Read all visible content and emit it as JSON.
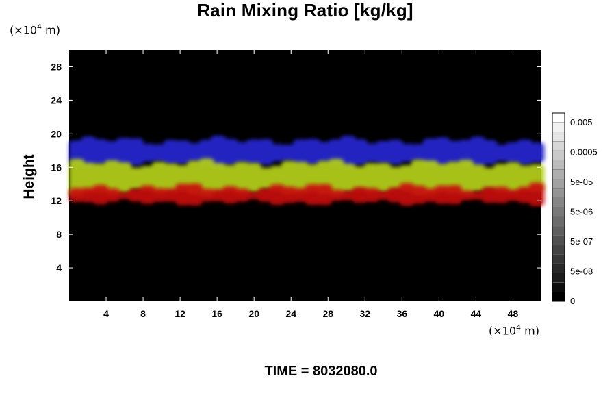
{
  "chart_data": {
    "type": "heatmap",
    "title": "Rain Mixing Ratio [kg/kg]",
    "ylabel": "Height",
    "xlabel": "",
    "x_unit": {
      "prefix": "(×10",
      "exponent": "4",
      "suffix": " m)"
    },
    "y_unit": {
      "prefix": "(×10",
      "exponent": "4",
      "suffix": " m)"
    },
    "xlim": [
      0,
      51
    ],
    "ylim": [
      0,
      30
    ],
    "x_ticks": [
      4,
      8,
      12,
      16,
      20,
      24,
      28,
      32,
      36,
      40,
      44,
      48
    ],
    "y_ticks": [
      4,
      8,
      12,
      16,
      20,
      24,
      28
    ],
    "background": "#000000",
    "layers": [
      {
        "band": [
          16.4,
          19.2
        ],
        "color": "#2626d2"
      },
      {
        "band": [
          13.0,
          16.5
        ],
        "color": "#b6d21e"
      },
      {
        "band": [
          11.8,
          13.6
        ],
        "color": "#c81010"
      }
    ],
    "colorbar": {
      "levels": 20,
      "labels": [
        "0.005",
        "0.0005",
        "5e-05",
        "5e-06",
        "5e-07",
        "5e-08",
        "0"
      ]
    },
    "time_label": "TIME = 8032080.0"
  }
}
